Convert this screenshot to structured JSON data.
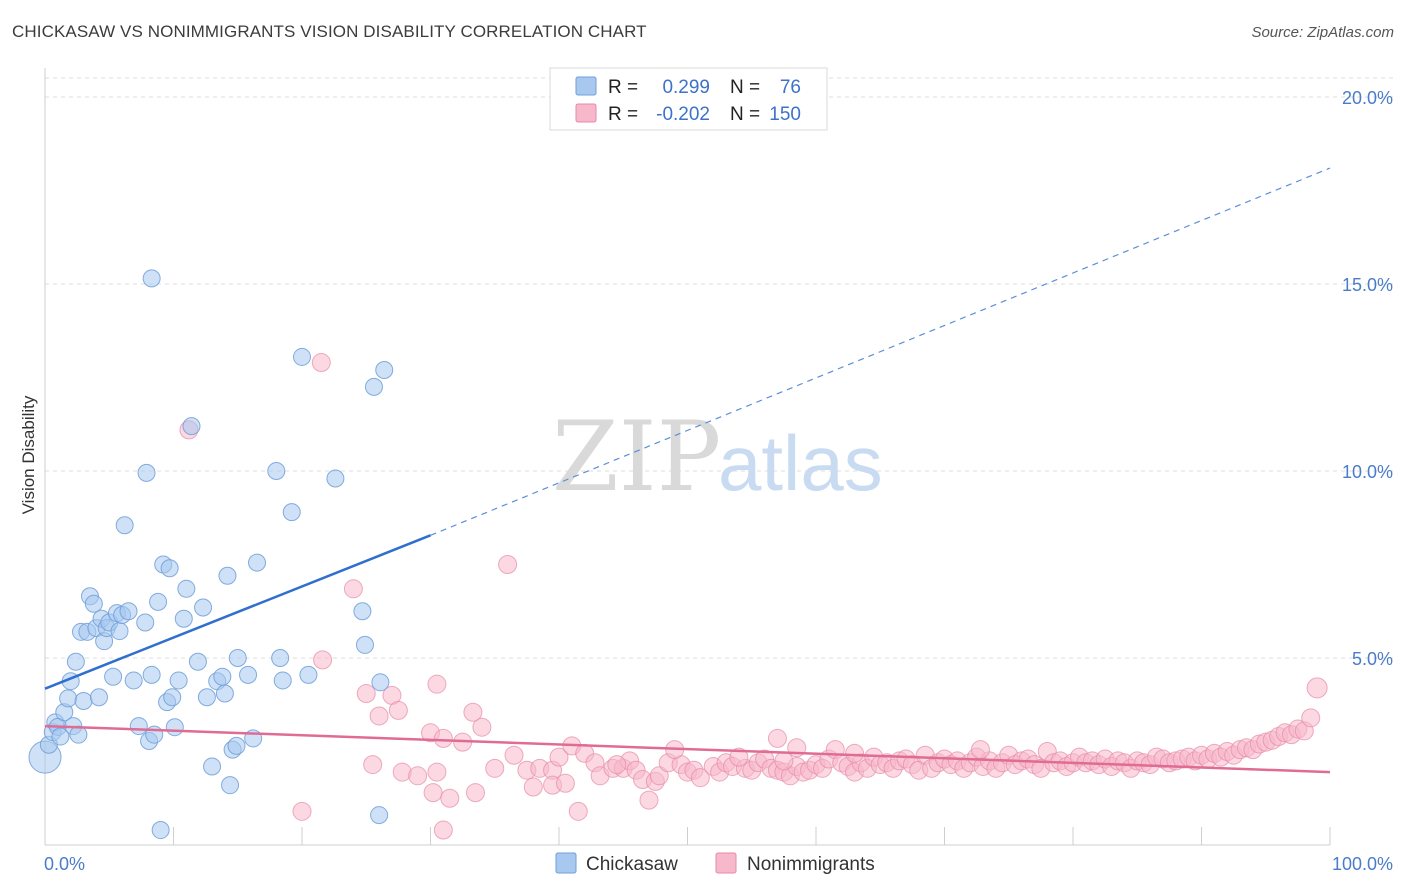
{
  "title": "CHICKASAW VS NONIMMIGRANTS VISION DISABILITY CORRELATION CHART",
  "source": "Source: ZipAtlas.com",
  "watermark": {
    "part1": "ZIP",
    "part2": "atlas"
  },
  "legend": {
    "rows": [
      {
        "r_label": "R =",
        "r_value": "0.299",
        "n_label": "N =",
        "n_value": "76",
        "color": "#a8c8f0",
        "stroke": "#6f9fd8"
      },
      {
        "r_label": "R =",
        "r_value": "-0.202",
        "n_label": "N =",
        "n_value": "150",
        "color": "#f7b8cb",
        "stroke": "#e58aa8"
      }
    ]
  },
  "bottom_legend": [
    {
      "label": "Chickasaw",
      "color": "#a8c8f0",
      "stroke": "#6f9fd8"
    },
    {
      "label": "Nonimmigrants",
      "color": "#f7b8cb",
      "stroke": "#e58aa8"
    }
  ],
  "chart_data": {
    "type": "scatter",
    "title": "CHICKASAW VS NONIMMIGRANTS VISION DISABILITY CORRELATION CHART",
    "xlabel": "",
    "ylabel": "Vision Disability",
    "xlim": [
      0,
      100
    ],
    "ylim": [
      0,
      20
    ],
    "x_tick_labels": [
      "0.0%",
      "100.0%"
    ],
    "y_ticks": [
      5,
      10,
      15,
      20
    ],
    "y_tick_labels": [
      "5.0%",
      "10.0%",
      "15.0%",
      "20.0%"
    ],
    "grid": true,
    "legend_position": "top-center",
    "series": [
      {
        "name": "Chickasaw",
        "color": "#6f9fd8",
        "fill": "#a8c8f0",
        "trend": {
          "x0": 0,
          "y0": 4.18,
          "x1": 30,
          "y1": 8.28,
          "dashed_to_x": 100,
          "dashed_to_y": 18.1
        },
        "points": [
          [
            0.0,
            2.35
          ],
          [
            0.3,
            2.68
          ],
          [
            0.6,
            3.02
          ],
          [
            0.8,
            3.28
          ],
          [
            1.0,
            3.16
          ],
          [
            1.2,
            2.9
          ],
          [
            1.5,
            3.55
          ],
          [
            1.8,
            3.92
          ],
          [
            2.0,
            4.38
          ],
          [
            2.2,
            3.18
          ],
          [
            2.4,
            4.9
          ],
          [
            2.6,
            2.95
          ],
          [
            2.8,
            5.7
          ],
          [
            3.0,
            3.85
          ],
          [
            3.3,
            5.7
          ],
          [
            3.5,
            6.65
          ],
          [
            3.8,
            6.45
          ],
          [
            4.0,
            5.8
          ],
          [
            4.2,
            3.95
          ],
          [
            4.4,
            6.05
          ],
          [
            4.6,
            5.45
          ],
          [
            4.8,
            5.8
          ],
          [
            5.0,
            5.95
          ],
          [
            5.3,
            4.5
          ],
          [
            5.6,
            6.2
          ],
          [
            5.8,
            5.72
          ],
          [
            6.0,
            6.15
          ],
          [
            6.2,
            8.55
          ],
          [
            6.5,
            6.25
          ],
          [
            6.9,
            4.4
          ],
          [
            7.3,
            3.18
          ],
          [
            7.8,
            5.95
          ],
          [
            8.1,
            2.78
          ],
          [
            8.3,
            4.55
          ],
          [
            8.5,
            2.95
          ],
          [
            8.8,
            6.5
          ],
          [
            9.2,
            7.5
          ],
          [
            9.5,
            3.82
          ],
          [
            9.7,
            7.4
          ],
          [
            9.9,
            3.95
          ],
          [
            10.1,
            3.15
          ],
          [
            10.4,
            4.4
          ],
          [
            8.3,
            15.15
          ],
          [
            10.8,
            6.05
          ],
          [
            11.0,
            6.85
          ],
          [
            11.4,
            11.2
          ],
          [
            11.9,
            4.9
          ],
          [
            12.3,
            6.35
          ],
          [
            12.6,
            3.95
          ],
          [
            13.0,
            2.1
          ],
          [
            13.4,
            4.38
          ],
          [
            13.8,
            4.5
          ],
          [
            14.0,
            4.05
          ],
          [
            14.2,
            7.2
          ],
          [
            14.4,
            1.6
          ],
          [
            14.6,
            2.55
          ],
          [
            14.9,
            2.65
          ],
          [
            15.0,
            5.0
          ],
          [
            15.8,
            4.55
          ],
          [
            16.2,
            2.85
          ],
          [
            16.5,
            7.55
          ],
          [
            7.9,
            9.95
          ],
          [
            18.0,
            10.0
          ],
          [
            18.3,
            5.0
          ],
          [
            18.5,
            4.4
          ],
          [
            19.2,
            8.9
          ],
          [
            20.0,
            13.05
          ],
          [
            20.5,
            4.55
          ],
          [
            22.6,
            9.8
          ],
          [
            24.7,
            6.25
          ],
          [
            24.9,
            5.35
          ],
          [
            25.6,
            12.25
          ],
          [
            26.1,
            4.35
          ],
          [
            26.4,
            12.7
          ],
          [
            9.0,
            0.4
          ],
          [
            26.0,
            0.8
          ]
        ]
      },
      {
        "name": "Nonimmigrants",
        "color": "#e58aa8",
        "fill": "#f7b8cb",
        "trend": {
          "x0": 0,
          "y0": 3.18,
          "x1": 100,
          "y1": 1.95
        },
        "points": [
          [
            21.5,
            12.9
          ],
          [
            11.2,
            11.1
          ],
          [
            36.0,
            7.5
          ],
          [
            24.0,
            6.85
          ],
          [
            21.6,
            4.95
          ],
          [
            30.5,
            4.3
          ],
          [
            25.0,
            4.05
          ],
          [
            27.0,
            4.0
          ],
          [
            26.0,
            3.45
          ],
          [
            27.5,
            3.6
          ],
          [
            34.0,
            3.15
          ],
          [
            33.3,
            3.55
          ],
          [
            30.0,
            3.0
          ],
          [
            31.0,
            2.85
          ],
          [
            32.5,
            2.75
          ],
          [
            25.5,
            2.15
          ],
          [
            27.8,
            1.95
          ],
          [
            29.0,
            1.85
          ],
          [
            30.5,
            1.95
          ],
          [
            30.2,
            1.4
          ],
          [
            31.5,
            1.25
          ],
          [
            33.5,
            1.4
          ],
          [
            35.0,
            2.05
          ],
          [
            36.5,
            2.4
          ],
          [
            37.5,
            2.0
          ],
          [
            38.5,
            2.05
          ],
          [
            39.5,
            2.0
          ],
          [
            40.0,
            2.35
          ],
          [
            41.0,
            2.65
          ],
          [
            42.0,
            2.45
          ],
          [
            42.8,
            2.2
          ],
          [
            43.2,
            1.85
          ],
          [
            44.2,
            2.05
          ],
          [
            45.0,
            2.05
          ],
          [
            45.5,
            2.25
          ],
          [
            46.0,
            2.0
          ],
          [
            46.5,
            1.75
          ],
          [
            47.5,
            1.7
          ],
          [
            47.0,
            1.2
          ],
          [
            47.8,
            1.85
          ],
          [
            48.5,
            2.2
          ],
          [
            49.5,
            2.15
          ],
          [
            50.0,
            1.95
          ],
          [
            50.5,
            2.0
          ],
          [
            51.0,
            1.8
          ],
          [
            52.0,
            2.1
          ],
          [
            52.5,
            1.95
          ],
          [
            53.0,
            2.2
          ],
          [
            53.5,
            2.1
          ],
          [
            54.5,
            2.05
          ],
          [
            55.0,
            2.0
          ],
          [
            55.5,
            2.2
          ],
          [
            56.0,
            2.3
          ],
          [
            56.5,
            2.05
          ],
          [
            57.0,
            2.0
          ],
          [
            57.5,
            1.95
          ],
          [
            58.0,
            1.85
          ],
          [
            58.5,
            2.1
          ],
          [
            59.0,
            1.95
          ],
          [
            59.5,
            2.0
          ],
          [
            60.0,
            2.15
          ],
          [
            60.5,
            2.05
          ],
          [
            61.0,
            2.3
          ],
          [
            61.5,
            2.55
          ],
          [
            62.0,
            2.2
          ],
          [
            62.5,
            2.1
          ],
          [
            63.0,
            1.95
          ],
          [
            63.5,
            2.2
          ],
          [
            64.0,
            2.05
          ],
          [
            64.5,
            2.35
          ],
          [
            65.0,
            2.15
          ],
          [
            65.5,
            2.2
          ],
          [
            66.0,
            2.05
          ],
          [
            66.5,
            2.25
          ],
          [
            67.0,
            2.3
          ],
          [
            67.5,
            2.15
          ],
          [
            68.0,
            2.0
          ],
          [
            68.5,
            2.4
          ],
          [
            69.0,
            2.05
          ],
          [
            69.5,
            2.2
          ],
          [
            70.0,
            2.3
          ],
          [
            70.5,
            2.15
          ],
          [
            71.0,
            2.25
          ],
          [
            71.5,
            2.05
          ],
          [
            72.0,
            2.2
          ],
          [
            72.5,
            2.35
          ],
          [
            73.0,
            2.1
          ],
          [
            73.5,
            2.25
          ],
          [
            74.0,
            2.05
          ],
          [
            74.5,
            2.2
          ],
          [
            75.0,
            2.4
          ],
          [
            75.5,
            2.15
          ],
          [
            76.0,
            2.25
          ],
          [
            76.5,
            2.3
          ],
          [
            77.0,
            2.15
          ],
          [
            77.5,
            2.05
          ],
          [
            78.0,
            2.5
          ],
          [
            78.5,
            2.2
          ],
          [
            79.0,
            2.25
          ],
          [
            79.5,
            2.1
          ],
          [
            80.0,
            2.2
          ],
          [
            80.5,
            2.35
          ],
          [
            81.0,
            2.2
          ],
          [
            81.5,
            2.25
          ],
          [
            82.0,
            2.15
          ],
          [
            82.5,
            2.3
          ],
          [
            83.0,
            2.1
          ],
          [
            83.5,
            2.25
          ],
          [
            84.0,
            2.2
          ],
          [
            84.5,
            2.05
          ],
          [
            85.0,
            2.25
          ],
          [
            85.5,
            2.2
          ],
          [
            86.0,
            2.15
          ],
          [
            86.5,
            2.35
          ],
          [
            87.0,
            2.3
          ],
          [
            87.5,
            2.2
          ],
          [
            88.0,
            2.25
          ],
          [
            88.5,
            2.3
          ],
          [
            89.0,
            2.35
          ],
          [
            89.5,
            2.25
          ],
          [
            90.0,
            2.4
          ],
          [
            90.5,
            2.3
          ],
          [
            91.0,
            2.45
          ],
          [
            91.5,
            2.35
          ],
          [
            92.0,
            2.5
          ],
          [
            92.5,
            2.4
          ],
          [
            93.0,
            2.55
          ],
          [
            93.5,
            2.6
          ],
          [
            94.0,
            2.55
          ],
          [
            94.5,
            2.7
          ],
          [
            95.0,
            2.75
          ],
          [
            95.5,
            2.8
          ],
          [
            96.0,
            2.9
          ],
          [
            96.5,
            3.0
          ],
          [
            97.0,
            2.95
          ],
          [
            97.5,
            3.1
          ],
          [
            98.0,
            3.05
          ],
          [
            98.5,
            3.4
          ],
          [
            99.0,
            4.2
          ],
          [
            49.0,
            2.55
          ],
          [
            54.0,
            2.35
          ],
          [
            58.5,
            2.6
          ],
          [
            63.0,
            2.45
          ],
          [
            72.8,
            2.55
          ],
          [
            57.0,
            2.85
          ],
          [
            39.5,
            1.6
          ],
          [
            41.5,
            0.9
          ],
          [
            20.0,
            0.9
          ],
          [
            40.5,
            1.65
          ],
          [
            31.0,
            0.4
          ],
          [
            38.0,
            1.55
          ],
          [
            44.5,
            2.15
          ],
          [
            57.5,
            2.25
          ]
        ]
      }
    ]
  }
}
